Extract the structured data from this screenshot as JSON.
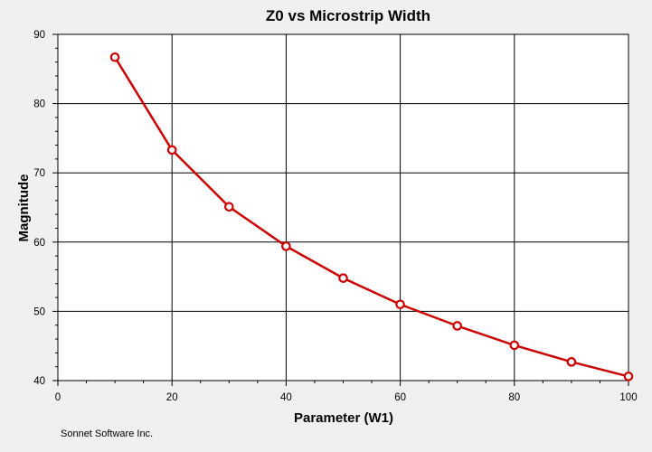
{
  "chart_data": {
    "type": "line",
    "title": "Z0 vs Microstrip Width",
    "xlabel": "Parameter (W1)",
    "ylabel": "Magnitude",
    "xlim": [
      0,
      100
    ],
    "ylim": [
      40,
      90
    ],
    "x_ticks": [
      0,
      20,
      40,
      60,
      80,
      100
    ],
    "y_ticks": [
      40,
      50,
      60,
      70,
      80,
      90
    ],
    "grid": true,
    "series": [
      {
        "color": "#cc0000",
        "marker": "open-circle",
        "x": [
          10,
          20,
          30,
          40,
          50,
          60,
          70,
          80,
          90,
          100
        ],
        "y": [
          86.7,
          73.3,
          65.1,
          59.4,
          54.8,
          51.0,
          47.9,
          45.1,
          42.7,
          40.6
        ]
      }
    ]
  },
  "footer": {
    "credit": "Sonnet Software Inc."
  },
  "colors": {
    "background": "#f0f0f0",
    "plot_area": "#ffffff",
    "grid": "#000000",
    "series": "#cc0000"
  }
}
